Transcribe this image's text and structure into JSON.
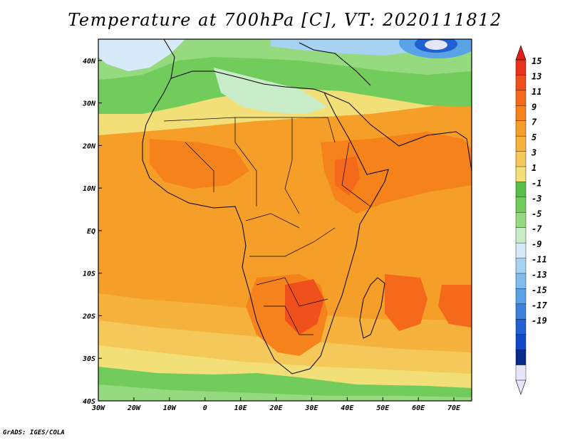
{
  "title": "Temperature at 700hPa [C], VT: 2020111812",
  "credit": "GrADS: IGES/COLA",
  "map": {
    "lon_range": [
      -30,
      75
    ],
    "lat_range": [
      -40,
      45
    ],
    "x_ticks": [
      "30W",
      "20W",
      "10W",
      "0",
      "10E",
      "20E",
      "30E",
      "40E",
      "50E",
      "60E",
      "70E"
    ],
    "y_ticks": [
      "40N",
      "30N",
      "20N",
      "10N",
      "EQ",
      "10S",
      "20S",
      "30S",
      "40S"
    ]
  },
  "colorbar": {
    "labels": [
      "15",
      "13",
      "11",
      "9",
      "7",
      "5",
      "3",
      "1",
      "-1",
      "-3",
      "-5",
      "-7",
      "-9",
      "-11",
      "-13",
      "-15",
      "-17",
      "-19"
    ],
    "colors": [
      "#e8321e",
      "#f0501c",
      "#f56a1a",
      "#f5821a",
      "#f59e28",
      "#f5b23c",
      "#f5c85a",
      "#f3df78",
      "#58be4a",
      "#72cc5c",
      "#96da80",
      "#c8ecc8",
      "#d6eafa",
      "#a8d2f2",
      "#80bcec",
      "#5aa2e6",
      "#3c82dc",
      "#2060d0",
      "#1048c8",
      "#0a2a8a",
      "#e6e6f8"
    ],
    "top_arrow_color": "#e02018",
    "bottom_arrow_color": "#e6e6f8"
  }
}
